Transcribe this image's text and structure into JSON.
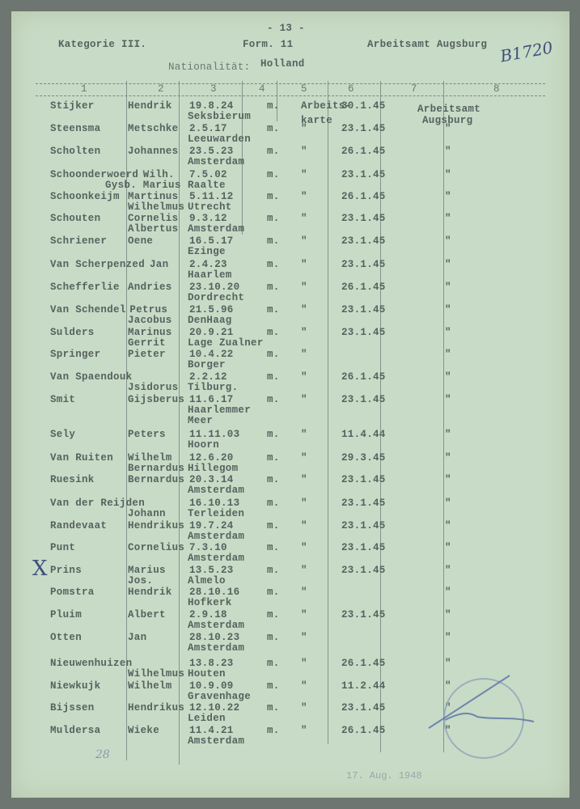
{
  "header": {
    "page_number": "- 13 -",
    "category": "Kategorie III.",
    "form": "Form. 11",
    "office": "Arbeitsamt Augsburg",
    "handwritten_ref": "B1720",
    "nationality_label": "Nationalität:",
    "nationality": "Holland",
    "columns": [
      "1",
      "2",
      "3",
      "4",
      "5",
      "6",
      "7",
      "8"
    ]
  },
  "first_row_extra": {
    "c5_line2": "karte",
    "c8_line1": "Arbeitsamt",
    "c8_line2": "Augsburg"
  },
  "rows": [
    {
      "surname": "Stijker",
      "given": "Hendrik",
      "dob": "19.8.24",
      "sex": "m.",
      "c5": "Arbeits-",
      "c6": "30.1.45",
      "c8": "",
      "given2": "",
      "place": "Seksbierum"
    },
    {
      "surname": "Steensma",
      "given": "Metschke",
      "dob": "2.5.17",
      "sex": "m.",
      "c5": "\"",
      "c6": "23.1.45",
      "c8": "\"",
      "given2": "",
      "place": "Leeuwarden"
    },
    {
      "surname": "Scholten",
      "given": "Johannes",
      "dob": "23.5.23",
      "sex": "m.",
      "c5": "\"",
      "c6": "26.1.45",
      "c8": "\"",
      "given2": "",
      "place": "Amsterdam"
    },
    {
      "surname": "Schoonderwoerd",
      "given": "Wilh.",
      "dob": "7.5.02",
      "sex": "m.",
      "c5": "\"",
      "c6": "23.1.45",
      "c8": "\"",
      "given2": "Gysb. Marius",
      "place": "Raalte"
    },
    {
      "surname": "Schoonkeijm",
      "given": "Martinus",
      "dob": "5.11.12",
      "sex": "m.",
      "c5": "\"",
      "c6": "26.1.45",
      "c8": "\"",
      "given2": "Wilhelmus",
      "place": "Utrecht"
    },
    {
      "surname": "Schouten",
      "given": "Cornelis",
      "dob": "9.3.12",
      "sex": "m.",
      "c5": "\"",
      "c6": "23.1.45",
      "c8": "\"",
      "given2": "Albertus",
      "place": "Amsterdam"
    },
    {
      "surname": "Schriener",
      "given": "Oene",
      "dob": "16.5.17",
      "sex": "m.",
      "c5": "\"",
      "c6": "23.1.45",
      "c8": "\"",
      "given2": "",
      "place": "Ezinge"
    },
    {
      "surname": "Van Scherpenzed",
      "given": "Jan",
      "dob": "2.4.23",
      "sex": "m.",
      "c5": "\"",
      "c6": "23.1.45",
      "c8": "\"",
      "given2": "",
      "place": "Haarlem"
    },
    {
      "surname": "Schefferlie",
      "given": "Andries",
      "dob": "23.10.20",
      "sex": "m.",
      "c5": "\"",
      "c6": "26.1.45",
      "c8": "\"",
      "given2": "",
      "place": "Dordrecht"
    },
    {
      "surname": "Van Schendel",
      "given": "Petrus",
      "dob": "21.5.96",
      "sex": "m.",
      "c5": "\"",
      "c6": "23.1.45",
      "c8": "\"",
      "given2": "Jacobus",
      "place": "DenHaag"
    },
    {
      "surname": "Sulders",
      "given": "Marinus",
      "dob": "20.9.21",
      "sex": "m.",
      "c5": "\"",
      "c6": "23.1.45",
      "c8": "\"",
      "given2": "Gerrit",
      "place": "Lage Zualner"
    },
    {
      "surname": "Springer",
      "given": "Pieter",
      "dob": "10.4.22",
      "sex": "m.",
      "c5": "\"",
      "c6": "",
      "c8": "\"",
      "given2": "",
      "place": "Borger"
    },
    {
      "surname": "Van Spaendouk",
      "given": "",
      "dob": "2.2.12",
      "sex": "m.",
      "c5": "\"",
      "c6": "26.1.45",
      "c8": "\"",
      "given2": "Jsidorus",
      "place": "Tilburg."
    },
    {
      "surname": "Smit",
      "given": "Gijsberus",
      "dob": "11.6.17",
      "sex": "m.",
      "c5": "\"",
      "c6": "23.1.45",
      "c8": "\"",
      "given2": "",
      "place": "Haarlemmer\nMeer"
    },
    {
      "surname": "Sely",
      "given": "Peters",
      "dob": "11.11.03",
      "sex": "m.",
      "c5": "\"",
      "c6": "11.4.44",
      "c8": "\"",
      "given2": "",
      "place": "Hoorn"
    },
    {
      "surname": "Van Ruiten",
      "given": "Wilhelm",
      "dob": "12.6.20",
      "sex": "m.",
      "c5": "\"",
      "c6": "29.3.45",
      "c8": "\"",
      "given2": "Bernardus",
      "place": "Hillegom"
    },
    {
      "surname": "Ruesink",
      "given": "Bernardus",
      "dob": "20.3.14",
      "sex": "m.",
      "c5": "\"",
      "c6": "23.1.45",
      "c8": "\"",
      "given2": "",
      "place": "Amsterdam"
    },
    {
      "surname": "Van der Reijden",
      "given": "",
      "dob": "16.10.13",
      "sex": "m.",
      "c5": "\"",
      "c6": "23.1.45",
      "c8": "\"",
      "given2": "Johann",
      "place": "Terleiden"
    },
    {
      "surname": "Randevaat",
      "given": "Hendrikus",
      "dob": "19.7.24",
      "sex": "m.",
      "c5": "\"",
      "c6": "23.1.45",
      "c8": "\"",
      "given2": "",
      "place": "Amsterdam"
    },
    {
      "surname": "Punt",
      "given": "Cornelius",
      "dob": "7.3.10",
      "sex": "m.",
      "c5": "\"",
      "c6": "23.1.45",
      "c8": "\"",
      "given2": "",
      "place": "Amsterdam"
    },
    {
      "surname": "Prins",
      "given": "Marius",
      "dob": "13.5.23",
      "sex": "m.",
      "c5": "\"",
      "c6": "23.1.45",
      "c8": "\"",
      "given2": "Jos.",
      "place": "Almelo"
    },
    {
      "surname": "Pomstra",
      "given": "Hendrik",
      "dob": "28.10.16",
      "sex": "m.",
      "c5": "\"",
      "c6": "",
      "c8": "\"",
      "given2": "",
      "place": "Hofkerk"
    },
    {
      "surname": "Pluim",
      "given": "Albert",
      "dob": "2.9.18",
      "sex": "m.",
      "c5": "\"",
      "c6": "23.1.45",
      "c8": "\"",
      "given2": "",
      "place": "Amsterdam"
    },
    {
      "surname": "Otten",
      "given": "Jan",
      "dob": "28.10.23",
      "sex": "m.",
      "c5": "\"",
      "c6": "",
      "c8": "\"",
      "given2": "",
      "place": "Amsterdam"
    },
    {
      "surname": "Nieuwenhuizen",
      "given": "",
      "dob": "13.8.23",
      "sex": "m.",
      "c5": "\"",
      "c6": "26.1.45",
      "c8": "\"",
      "given2": "Wilhelmus",
      "place": "Houten"
    },
    {
      "surname": "Niewkujk",
      "given": "Wilhelm",
      "dob": "10.9.09",
      "sex": "m.",
      "c5": "\"",
      "c6": "11.2.44",
      "c8": "\"",
      "given2": "",
      "place": "Gravenhage"
    },
    {
      "surname": "Bijssen",
      "given": "Hendrikus",
      "dob": "12.10.22",
      "sex": "m.",
      "c5": "\"",
      "c6": "23.1.45",
      "c8": "\"",
      "given2": "",
      "place": "Leiden"
    },
    {
      "surname": "Muldersa",
      "given": "Wieke",
      "dob": "11.4.21",
      "sex": "m.",
      "c5": "\"",
      "c6": "26.1.45",
      "c8": "\"",
      "given2": "",
      "place": "Amsterdam"
    }
  ],
  "annotations": {
    "margin_mark": "X",
    "page_note": "28",
    "stamp_date": "17. Aug. 1948"
  },
  "colors": {
    "paper": "#c8dbc6",
    "ink": "#56625f",
    "pen": "#3f4f7a"
  }
}
